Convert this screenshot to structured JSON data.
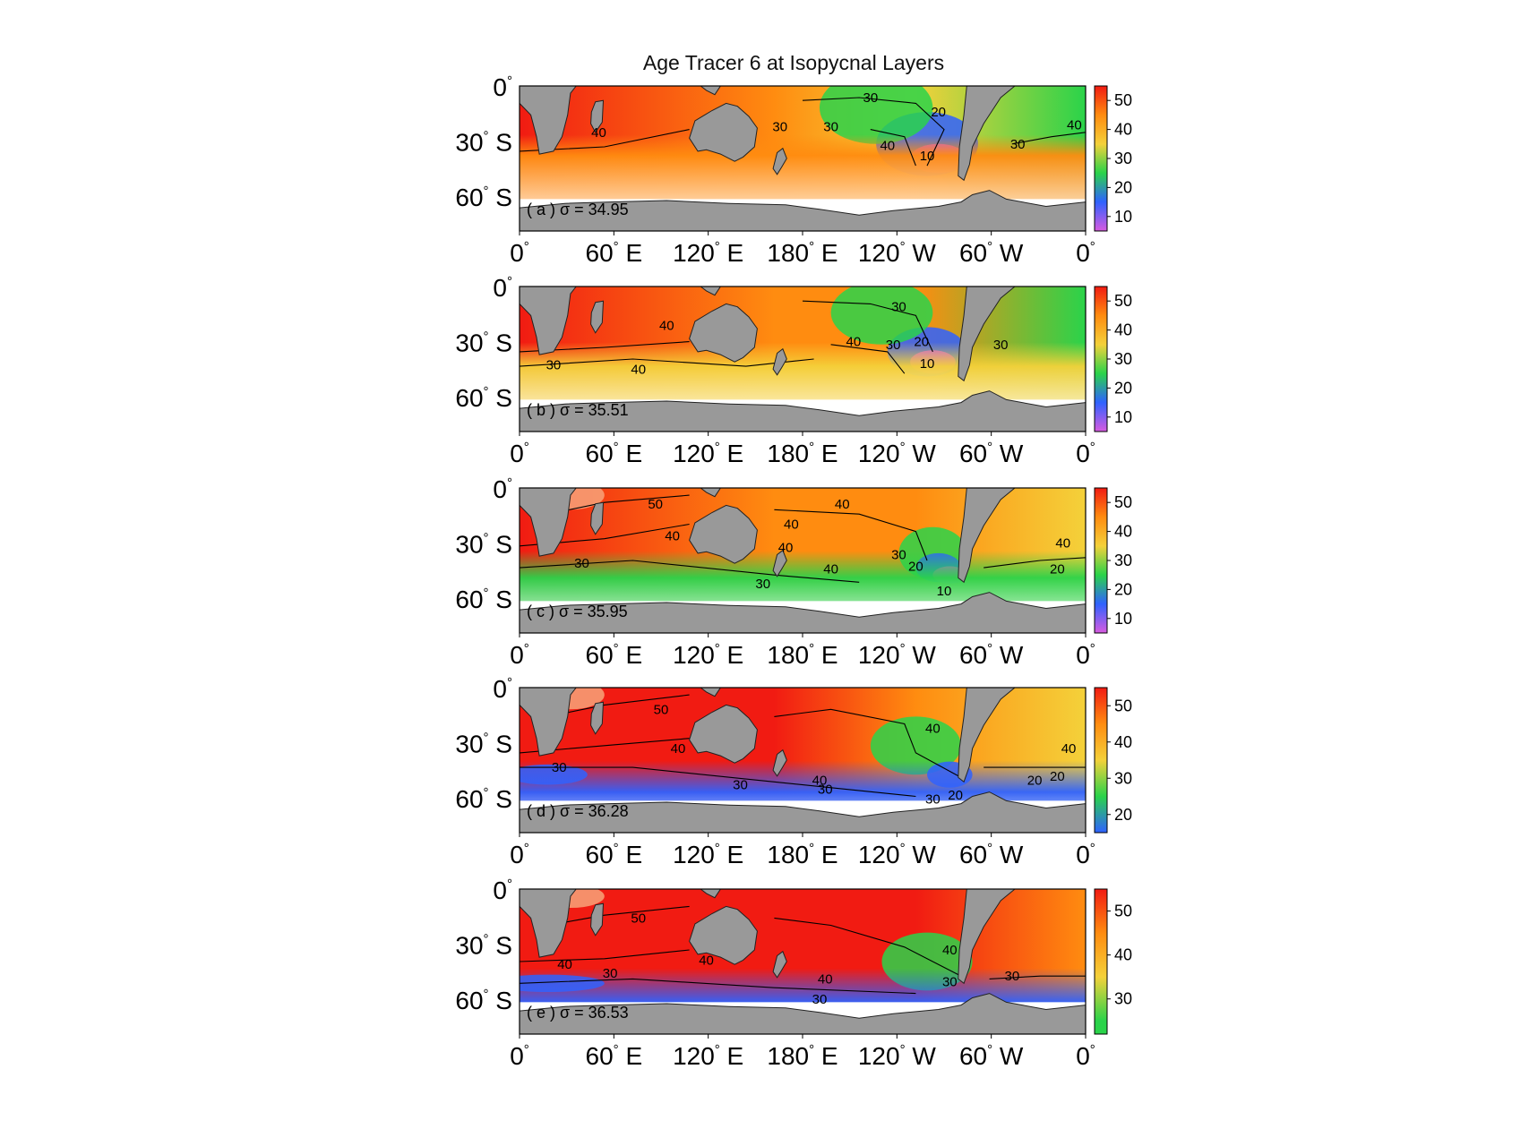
{
  "figure": {
    "title": "Age Tracer 6 at Isopycnal Layers",
    "y_ticks": [
      "0",
      "30",
      "60"
    ],
    "y_tick_suffix": [
      "",
      " S",
      " S"
    ],
    "x_ticks": [
      "0",
      "60",
      "120",
      "180",
      "120",
      "60",
      "0"
    ],
    "x_tick_suffix": [
      "",
      " E",
      " E",
      " E",
      " W",
      " W",
      ""
    ],
    "land_color": "#999999",
    "colormap": [
      "#d85be0",
      "#2f62ff",
      "#2ad34a",
      "#f4d13a",
      "#ff8c10",
      "#f11b12"
    ]
  },
  "chart_data": [
    {
      "type": "heatmap",
      "label": "( a ) σ = 34.95",
      "variable": "Age Tracer 6",
      "colorbar_ticks": [
        "10",
        "20",
        "30",
        "40",
        "50"
      ],
      "colorbar_range": [
        5,
        55
      ],
      "contour_labels": [
        "40",
        "30",
        "20",
        "10",
        "30",
        "30",
        "40",
        "30",
        "40"
      ]
    },
    {
      "type": "heatmap",
      "label": "( b ) σ = 35.51",
      "variable": "Age Tracer 6",
      "colorbar_ticks": [
        "10",
        "20",
        "30",
        "40",
        "50"
      ],
      "colorbar_range": [
        5,
        55
      ],
      "contour_labels": [
        "40",
        "30",
        "30",
        "40",
        "40",
        "30",
        "20",
        "10",
        "30"
      ]
    },
    {
      "type": "heatmap",
      "label": "( c ) σ = 35.95",
      "variable": "Age Tracer 6",
      "colorbar_ticks": [
        "10",
        "20",
        "30",
        "40",
        "50"
      ],
      "colorbar_range": [
        5,
        55
      ],
      "contour_labels": [
        "50",
        "40",
        "40",
        "40",
        "40",
        "40",
        "30",
        "30",
        "30",
        "20",
        "10",
        "40",
        "20"
      ]
    },
    {
      "type": "heatmap",
      "label": "( d ) σ = 36.28",
      "variable": "Age Tracer 6",
      "colorbar_ticks": [
        "20",
        "30",
        "40",
        "50"
      ],
      "colorbar_range": [
        15,
        55
      ],
      "contour_labels": [
        "50",
        "40",
        "30",
        "30",
        "40",
        "30",
        "40",
        "30",
        "20",
        "40",
        "20",
        "20"
      ]
    },
    {
      "type": "heatmap",
      "label": "( e ) σ = 36.53",
      "variable": "Age Tracer 6",
      "colorbar_ticks": [
        "30",
        "40",
        "50"
      ],
      "colorbar_range": [
        22,
        55
      ],
      "contour_labels": [
        "50",
        "40",
        "40",
        "30",
        "40",
        "30",
        "40",
        "30",
        "30"
      ]
    }
  ]
}
